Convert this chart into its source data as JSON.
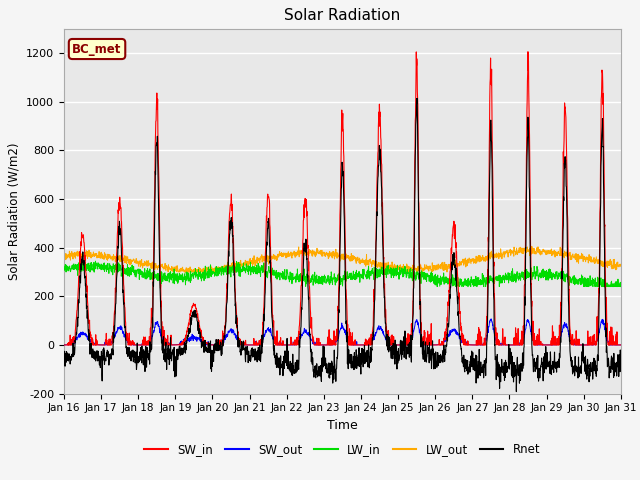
{
  "title": "Solar Radiation",
  "xlabel": "Time",
  "ylabel": "Solar Radiation (W/m2)",
  "ylim": [
    -200,
    1300
  ],
  "yticks": [
    -200,
    0,
    200,
    400,
    600,
    800,
    1000,
    1200
  ],
  "background_color": "#f5f5f5",
  "plot_bg_color": "#e8e8e8",
  "annotation_label": "BC_met",
  "annotation_box_color": "#ffffcc",
  "annotation_border_color": "#8B0000",
  "colors": {
    "SW_in": "#ff0000",
    "SW_out": "#0000ff",
    "LW_in": "#00dd00",
    "LW_out": "#ffaa00",
    "Rnet": "#000000"
  },
  "x_tick_labels": [
    "Jan 16",
    "Jan 17",
    "Jan 18",
    "Jan 19",
    "Jan 20",
    "Jan 21",
    "Jan 22",
    "Jan 23",
    "Jan 24",
    "Jan 25",
    "Jan 26",
    "Jan 27",
    "Jan 28",
    "Jan 29",
    "Jan 30",
    "Jan 31"
  ],
  "n_days": 15,
  "pts_per_day": 144,
  "sw_in_peaks": [
    450,
    600,
    1010,
    170,
    600,
    630,
    600,
    950,
    940,
    1170,
    490,
    1150,
    1140,
    970,
    1130
  ],
  "sw_in_widths": [
    0.1,
    0.08,
    0.06,
    0.12,
    0.08,
    0.07,
    0.08,
    0.06,
    0.08,
    0.05,
    0.1,
    0.05,
    0.05,
    0.06,
    0.05
  ],
  "sw_out_peaks": [
    50,
    70,
    90,
    30,
    60,
    65,
    55,
    75,
    70,
    100,
    60,
    100,
    100,
    85,
    100
  ],
  "rnet_night_base": -60,
  "lw_in_base": 305,
  "lw_out_base": 335
}
